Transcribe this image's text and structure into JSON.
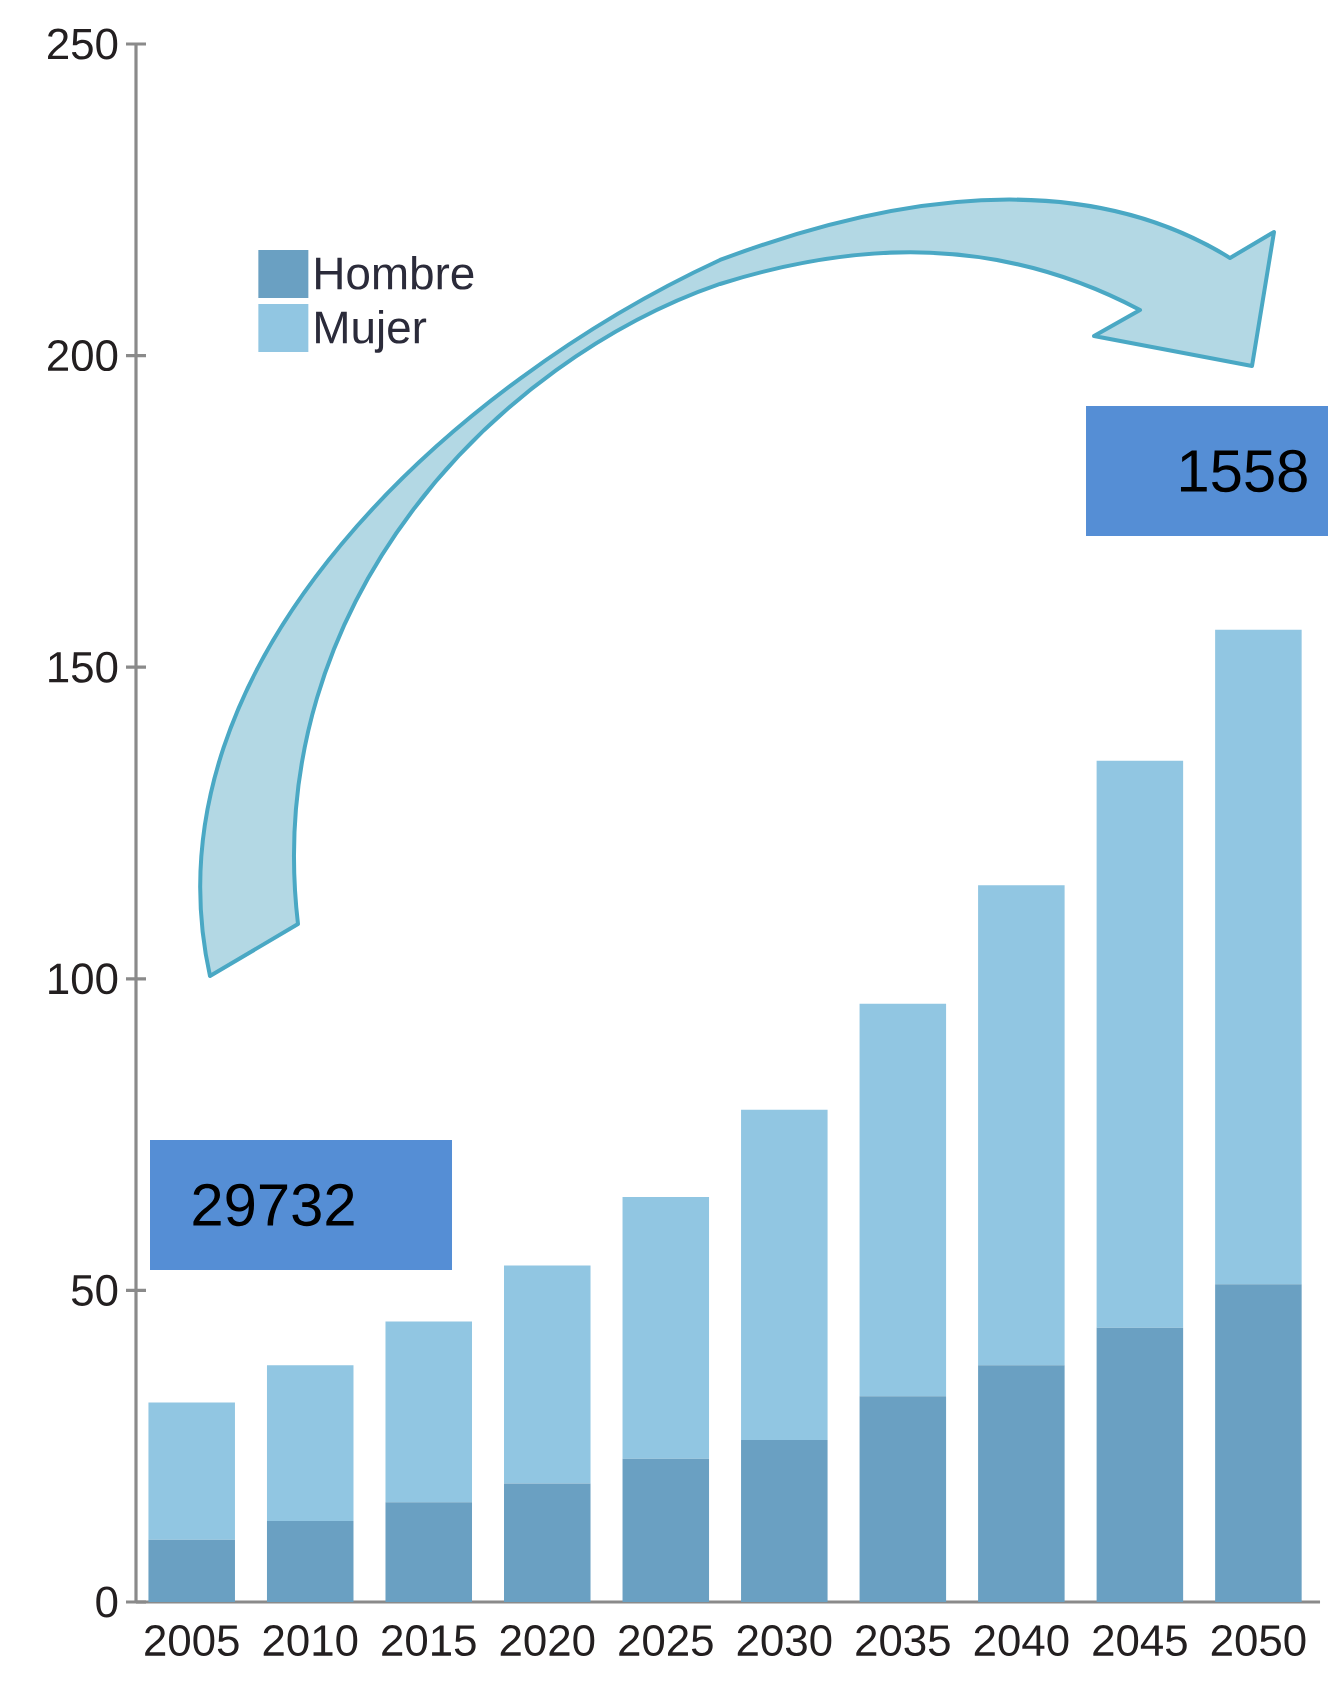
{
  "chart_data": {
    "type": "bar",
    "stacked": true,
    "categories": [
      "2005",
      "2010",
      "2015",
      "2020",
      "2025",
      "2030",
      "2035",
      "2040",
      "2045",
      "2050"
    ],
    "series": [
      {
        "name": "Hombre",
        "color": "#6aa0c2",
        "values": [
          10,
          13,
          16,
          19,
          23,
          26,
          33,
          38,
          44,
          51
        ]
      },
      {
        "name": "Mujer",
        "color": "#91c6e2",
        "values": [
          22,
          25,
          29,
          35,
          42,
          53,
          63,
          77,
          91,
          105
        ]
      }
    ],
    "ylim": [
      0,
      250
    ],
    "yticks": [
      0,
      50,
      100,
      150,
      200,
      250
    ],
    "legend": "top left",
    "annotations": [
      "29732",
      "1558"
    ]
  }
}
